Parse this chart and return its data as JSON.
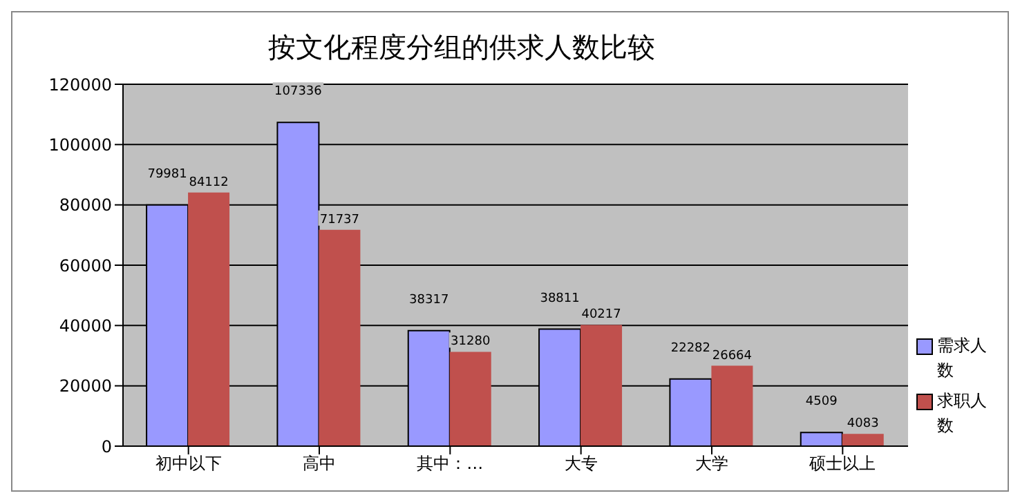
{
  "chart_data": {
    "type": "bar",
    "title": "按文化程度分组的供求人数比较",
    "categories": [
      "初中以下",
      "高中",
      "其中：…",
      "大专",
      "大学",
      "硕士以上"
    ],
    "series": [
      {
        "name": "需求人数",
        "color": "#9999ff",
        "values": [
          79981,
          107336,
          38317,
          38811,
          22282,
          4509
        ]
      },
      {
        "name": "求职人数",
        "color": "#c0504d",
        "values": [
          84112,
          71737,
          31280,
          40217,
          26664,
          4083
        ]
      }
    ],
    "ylim": [
      0,
      120000
    ],
    "yticks": [
      0,
      20000,
      40000,
      60000,
      80000,
      100000,
      120000
    ],
    "grid": "y",
    "legend": "bottom right",
    "data_labels": true
  }
}
